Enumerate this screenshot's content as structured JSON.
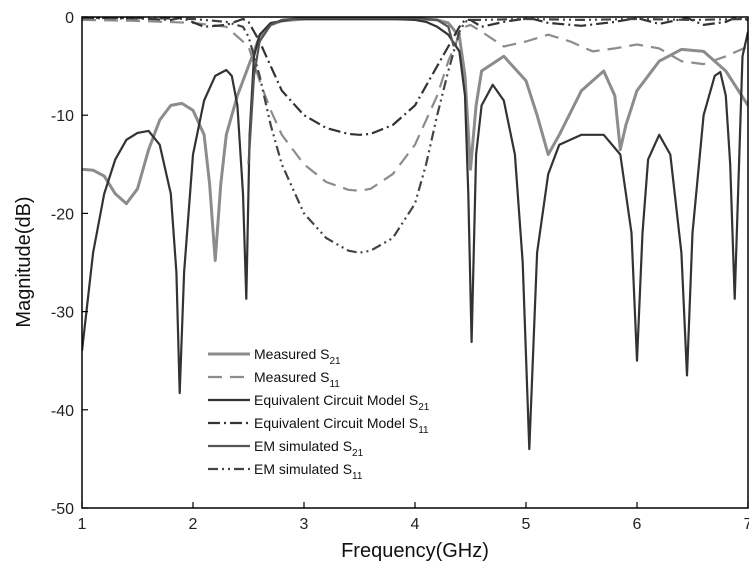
{
  "chart_data": {
    "type": "line",
    "xlabel": "Frequency(GHz)",
    "ylabel": "Magnitude(dB)",
    "xlim": [
      1,
      7
    ],
    "ylim": [
      -50,
      0
    ],
    "xticks": [
      "1",
      "2",
      "3",
      "4",
      "5",
      "6",
      "7"
    ],
    "yticks": [
      "0",
      "-10",
      "-20",
      "-30",
      "-40",
      "-50"
    ],
    "grid": false,
    "legend_position": "bottom-left",
    "series": [
      {
        "name": "Measured S21",
        "label_main": "Measured S",
        "label_sub": "21",
        "color": "#8c8c8c",
        "dash": "solid",
        "x": [
          1.0,
          1.1,
          1.2,
          1.3,
          1.4,
          1.5,
          1.6,
          1.7,
          1.8,
          1.9,
          2.0,
          2.1,
          2.15,
          2.2,
          2.25,
          2.3,
          2.4,
          2.5,
          2.6,
          2.7,
          2.8,
          3.0,
          3.5,
          4.0,
          4.2,
          4.3,
          4.4,
          4.45,
          4.5,
          4.55,
          4.6,
          4.8,
          5.0,
          5.1,
          5.2,
          5.3,
          5.5,
          5.7,
          5.8,
          5.85,
          5.9,
          6.0,
          6.2,
          6.4,
          6.6,
          6.8,
          7.0
        ],
        "y": [
          -15.5,
          -15.6,
          -16.2,
          -18.0,
          -19.0,
          -17.5,
          -13.5,
          -10.5,
          -9.0,
          -8.8,
          -9.5,
          -12.0,
          -17.0,
          -24.8,
          -17.0,
          -12.0,
          -8.0,
          -5.0,
          -2.0,
          -0.8,
          -0.4,
          -0.2,
          -0.2,
          -0.2,
          -0.3,
          -0.6,
          -2.0,
          -6.0,
          -15.5,
          -9.0,
          -5.5,
          -4.0,
          -6.5,
          -10.0,
          -14.0,
          -12.0,
          -7.5,
          -5.5,
          -8.0,
          -13.5,
          -11.0,
          -7.5,
          -4.5,
          -3.3,
          -3.5,
          -5.5,
          -9.0
        ]
      },
      {
        "name": "Measured S11",
        "label_main": "Measured S",
        "label_sub": "11",
        "color": "#8c8c8c",
        "dash": "14,8",
        "x": [
          1.0,
          1.5,
          2.0,
          2.3,
          2.5,
          2.6,
          2.7,
          2.8,
          3.0,
          3.2,
          3.4,
          3.5,
          3.6,
          3.8,
          4.0,
          4.2,
          4.3,
          4.4,
          4.45,
          4.5,
          4.6,
          4.8,
          5.0,
          5.2,
          5.4,
          5.6,
          5.8,
          6.0,
          6.2,
          6.4,
          6.6,
          6.8,
          7.0
        ],
        "y": [
          -0.3,
          -0.4,
          -0.6,
          -1.0,
          -3.0,
          -6.5,
          -9.5,
          -12.0,
          -15.0,
          -16.8,
          -17.6,
          -17.7,
          -17.5,
          -16.0,
          -13.0,
          -8.0,
          -4.5,
          -1.8,
          -1.0,
          -0.8,
          -1.5,
          -3.0,
          -2.5,
          -1.8,
          -2.5,
          -3.5,
          -3.2,
          -2.8,
          -3.2,
          -4.5,
          -4.8,
          -4.0,
          -3.0
        ]
      },
      {
        "name": "Equivalent Circuit Model S21",
        "label_main": "Equivalent Circuit Model S",
        "label_sub": "21",
        "color": "#333333",
        "dash": "solid",
        "x": [
          1.0,
          1.1,
          1.2,
          1.3,
          1.4,
          1.5,
          1.6,
          1.7,
          1.8,
          1.85,
          1.88,
          1.92,
          2.0,
          2.1,
          2.2,
          2.3,
          2.35,
          2.4,
          2.45,
          2.48,
          2.51,
          2.55,
          2.6,
          2.7,
          2.9,
          3.2,
          3.5,
          3.8,
          4.0,
          4.1,
          4.2,
          4.3,
          4.4,
          4.45,
          4.48,
          4.51,
          4.55,
          4.6,
          4.7,
          4.8,
          4.9,
          4.97,
          5.03,
          5.1,
          5.2,
          5.3,
          5.5,
          5.7,
          5.85,
          5.95,
          6.0,
          6.05,
          6.1,
          6.2,
          6.3,
          6.4,
          6.45,
          6.5,
          6.6,
          6.7,
          6.75,
          6.8,
          6.84,
          6.88,
          6.95,
          7.0
        ],
        "y": [
          -34.0,
          -24.0,
          -18.0,
          -14.5,
          -12.5,
          -11.8,
          -11.6,
          -13.0,
          -18.0,
          -26.0,
          -38.3,
          -26.0,
          -14.0,
          -8.5,
          -6.0,
          -5.4,
          -6.0,
          -9.0,
          -18.0,
          -28.7,
          -12.0,
          -4.0,
          -1.8,
          -0.6,
          -0.2,
          -0.2,
          -0.2,
          -0.2,
          -0.3,
          -0.5,
          -1.0,
          -1.8,
          -3.5,
          -8.0,
          -18.0,
          -33.1,
          -14.0,
          -9.0,
          -6.9,
          -8.5,
          -14.0,
          -25.0,
          -44.0,
          -24.0,
          -16.0,
          -13.0,
          -12.0,
          -12.0,
          -14.0,
          -22.0,
          -35.0,
          -22.0,
          -14.5,
          -12.0,
          -14.0,
          -24.0,
          -36.5,
          -22.0,
          -10.0,
          -6.0,
          -5.6,
          -8.0,
          -15.0,
          -28.7,
          -4.0,
          -1.5
        ]
      },
      {
        "name": "Equivalent Circuit Model S11",
        "label_main": "Equivalent Circuit Model S",
        "label_sub": "11",
        "color": "#333333",
        "dash": "12,4,2,4",
        "x": [
          1.0,
          1.5,
          1.8,
          1.88,
          1.95,
          2.1,
          2.3,
          2.45,
          2.5,
          2.6,
          2.7,
          2.8,
          3.0,
          3.2,
          3.4,
          3.5,
          3.6,
          3.8,
          4.0,
          4.2,
          4.3,
          4.4,
          4.45,
          4.5,
          4.6,
          4.8,
          5.03,
          5.2,
          5.5,
          5.8,
          6.0,
          6.2,
          6.45,
          6.6,
          6.8,
          6.88,
          7.0
        ],
        "y": [
          -0.1,
          -0.15,
          -0.3,
          -0.1,
          -0.3,
          -1.0,
          -0.8,
          -0.2,
          -0.5,
          -2.5,
          -5.0,
          -7.5,
          -10.0,
          -11.3,
          -11.9,
          -12.0,
          -11.9,
          -11.0,
          -9.0,
          -5.0,
          -3.0,
          -1.0,
          -0.3,
          -0.3,
          -1.0,
          -0.5,
          -0.1,
          -0.6,
          -0.9,
          -0.5,
          -0.1,
          -0.7,
          -0.1,
          -0.8,
          -0.5,
          -0.1,
          -0.3
        ]
      },
      {
        "name": "EM simulated S21",
        "label_main": "EM simulated S",
        "label_sub": "21",
        "color": "#555555",
        "dash": "solid",
        "x": [
          2.5,
          2.55,
          2.6,
          2.7,
          2.8,
          3.0,
          3.5,
          4.0,
          4.2,
          4.3,
          4.35
        ],
        "y": [
          -15.0,
          -6.0,
          -2.5,
          -0.8,
          -0.3,
          -0.1,
          -0.1,
          -0.1,
          -0.3,
          -1.0,
          -3.0
        ]
      },
      {
        "name": "EM simulated S11",
        "label_main": "EM simulated S",
        "label_sub": "11",
        "color": "#444444",
        "dash": "10,4,2,4,2,4",
        "x": [
          1.0,
          1.5,
          2.0,
          2.3,
          2.45,
          2.5,
          2.6,
          2.7,
          2.8,
          3.0,
          3.2,
          3.4,
          3.5,
          3.6,
          3.8,
          4.0,
          4.1,
          4.2,
          4.3,
          4.4,
          4.45,
          4.5,
          4.6,
          5.0,
          5.5,
          6.0,
          6.5,
          7.0
        ],
        "y": [
          -0.1,
          -0.1,
          -0.2,
          -0.5,
          -1.0,
          -2.0,
          -6.0,
          -11.0,
          -15.0,
          -20.0,
          -22.5,
          -23.8,
          -24.0,
          -23.8,
          -22.5,
          -19.0,
          -15.0,
          -10.0,
          -5.5,
          -1.5,
          -0.5,
          -0.3,
          -0.3,
          -0.2,
          -0.3,
          -0.2,
          -0.3,
          -0.2
        ]
      }
    ]
  }
}
